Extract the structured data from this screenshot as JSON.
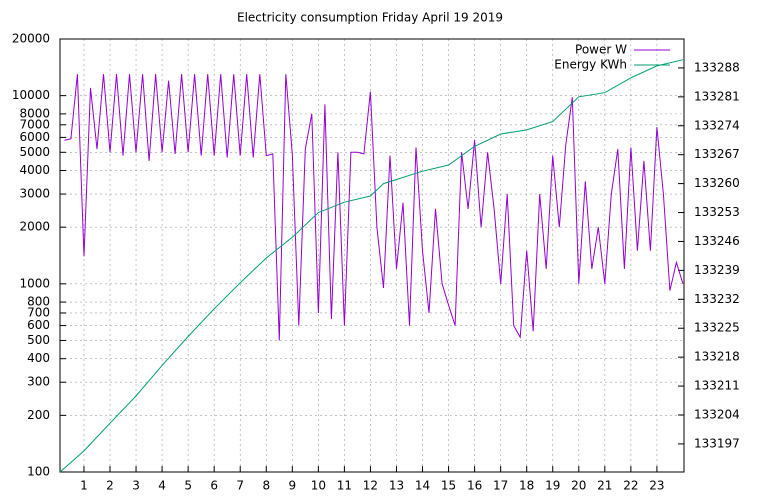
{
  "chart_data": {
    "type": "line",
    "title": "Electricity consumption Friday April 19 2019",
    "log_y": true,
    "grid": true,
    "legend": "top-right",
    "xlim": [
      0.08,
      24.04
    ],
    "xticks": [
      1,
      2,
      3,
      4,
      5,
      6,
      7,
      8,
      9,
      10,
      11,
      12,
      13,
      14,
      15,
      16,
      17,
      18,
      19,
      20,
      21,
      22,
      23
    ],
    "ylim": [
      100,
      20000
    ],
    "yticks": [
      100,
      200,
      300,
      400,
      500,
      600,
      700,
      800,
      1000,
      2000,
      3000,
      4000,
      5000,
      6000,
      7000,
      8000,
      10000,
      20000
    ],
    "y2lim": [
      133190.2,
      133295
    ],
    "y2ticks": [
      133197,
      133204,
      133211,
      133218,
      133225,
      133232,
      133239,
      133246,
      133253,
      133260,
      133267,
      133274,
      133281,
      133288
    ],
    "series": [
      {
        "name": "Power W",
        "color": "#9400d3",
        "x": [
          0.25,
          0.5,
          0.75,
          1,
          1.25,
          1.5,
          1.75,
          2,
          2.25,
          2.5,
          2.75,
          3,
          3.25,
          3.5,
          3.75,
          4,
          4.25,
          4.5,
          4.75,
          5,
          5.25,
          5.5,
          5.75,
          6,
          6.25,
          6.5,
          6.75,
          7,
          7.25,
          7.5,
          7.75,
          8,
          8.25,
          8.5,
          8.75,
          9,
          9.25,
          9.5,
          9.75,
          10,
          10.25,
          10.5,
          10.75,
          11,
          11.25,
          11.5,
          11.75,
          12,
          12.25,
          12.5,
          12.75,
          13,
          13.25,
          13.5,
          13.75,
          14,
          14.25,
          14.5,
          14.75,
          15,
          15.25,
          15.5,
          15.75,
          16,
          16.25,
          16.5,
          16.75,
          17,
          17.25,
          17.5,
          17.75,
          18,
          18.25,
          18.5,
          18.75,
          19,
          19.25,
          19.5,
          19.75,
          20,
          20.25,
          20.5,
          20.75,
          21,
          21.25,
          21.5,
          21.75,
          22,
          22.25,
          22.5,
          22.75,
          23,
          23.25,
          23.5,
          23.75,
          24
        ],
        "values": [
          5800,
          5900,
          13000,
          1400,
          11000,
          5200,
          13000,
          5000,
          13000,
          4800,
          13000,
          5000,
          13000,
          4500,
          13000,
          5000,
          12000,
          4900,
          13000,
          5000,
          13000,
          4800,
          13000,
          4800,
          13000,
          4700,
          13000,
          4800,
          13000,
          4700,
          13000,
          4800,
          4900,
          500,
          13000,
          4900,
          600,
          5200,
          8000,
          700,
          9000,
          650,
          5000,
          600,
          5000,
          5000,
          4900,
          10500,
          2000,
          950,
          4800,
          1200,
          2700,
          600,
          5300,
          1500,
          700,
          2500,
          1000,
          770,
          600,
          5000,
          2500,
          5800,
          2000,
          5000,
          2500,
          1000,
          3000,
          600,
          520,
          1500,
          560,
          3000,
          1200,
          4800,
          2000,
          5500,
          9800,
          1000,
          3500,
          1200,
          2000,
          1000,
          3000,
          5200,
          1200,
          5300,
          1500,
          4500,
          1500,
          6800,
          3000,
          920,
          1300,
          1000
        ]
      },
      {
        "name": "Energy KWh",
        "color": "#009e73",
        "axis": "y2",
        "x": [
          0.08,
          1,
          2,
          3,
          4,
          5,
          6,
          7,
          8,
          9,
          10,
          11,
          12,
          12.5,
          13,
          14,
          15,
          16,
          17,
          18,
          19,
          20,
          21,
          22,
          23,
          24
        ],
        "values": [
          133190.2,
          133195.3,
          133202,
          133208.6,
          133216,
          133223,
          133229.7,
          133236,
          133242,
          133247,
          133253,
          133255.5,
          133257,
          133260,
          133261,
          133263,
          133264.5,
          133269,
          133272,
          133273,
          133275,
          133281,
          133282,
          133285.6,
          133288.5,
          133290
        ]
      }
    ]
  }
}
